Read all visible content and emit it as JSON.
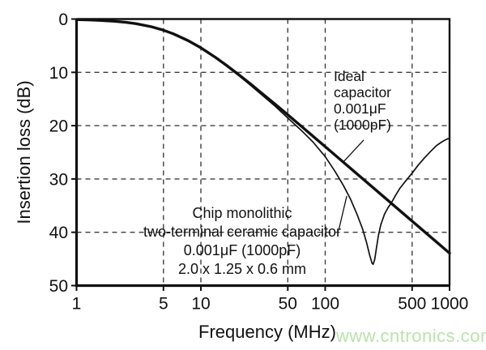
{
  "chart_data": {
    "type": "line",
    "title": "",
    "xlabel": "Frequency (MHz)",
    "ylabel": "Insertion loss (dB)",
    "x_scale": "log",
    "xlim": [
      1,
      1000
    ],
    "ylim": [
      0,
      50
    ],
    "y_axis_inverted": true,
    "grid": "dashed",
    "legend_position": "none",
    "x_ticks": [
      {
        "value": 1,
        "label": "1"
      },
      {
        "value": 5,
        "label": "5"
      },
      {
        "value": 10,
        "label": "10"
      },
      {
        "value": 50,
        "label": "50"
      },
      {
        "value": 100,
        "label": "100"
      },
      {
        "value": 500,
        "label": "500"
      },
      {
        "value": 1000,
        "label": "1000"
      }
    ],
    "y_ticks": [
      {
        "value": 0,
        "label": "0"
      },
      {
        "value": 10,
        "label": "10"
      },
      {
        "value": 20,
        "label": "20"
      },
      {
        "value": 30,
        "label": "30"
      },
      {
        "value": 40,
        "label": "40"
      },
      {
        "value": 50,
        "label": "50"
      }
    ],
    "x_gridlines": [
      5,
      10,
      50,
      100,
      500
    ],
    "y_gridlines": [
      10,
      20,
      30,
      40
    ],
    "series": [
      {
        "name": "Ideal capacitor 0.001μF (1000pF)",
        "stroke_width": 3.4,
        "points": [
          [
            1,
            0.11
          ],
          [
            1.3,
            0.18
          ],
          [
            1.6,
            0.27
          ],
          [
            2,
            0.41
          ],
          [
            2.5,
            0.62
          ],
          [
            3,
            0.87
          ],
          [
            4,
            1.45
          ],
          [
            5,
            2.09
          ],
          [
            6,
            2.76
          ],
          [
            8,
            4.12
          ],
          [
            10,
            5.4
          ],
          [
            13,
            7.14
          ],
          [
            16,
            8.64
          ],
          [
            20,
            10.36
          ],
          [
            25,
            12.15
          ],
          [
            30,
            13.66
          ],
          [
            40,
            16.07
          ],
          [
            50,
            17.97
          ],
          [
            65,
            20.22
          ],
          [
            80,
            22.01
          ],
          [
            100,
            23.94
          ],
          [
            130,
            26.21
          ],
          [
            160,
            28.01
          ],
          [
            200,
            29.95
          ],
          [
            250,
            31.88
          ],
          [
            300,
            33.47
          ],
          [
            400,
            35.97
          ],
          [
            500,
            37.9
          ],
          [
            650,
            40.18
          ],
          [
            800,
            41.98
          ],
          [
            1000,
            43.92
          ]
        ]
      },
      {
        "name": "Chip monolithic two-terminal ceramic capacitor 0.001μF (1000pF) 2.0 x 1.25 x 0.6 mm",
        "stroke_width": 1.7,
        "points": [
          [
            1,
            0.11
          ],
          [
            1.3,
            0.18
          ],
          [
            1.6,
            0.27
          ],
          [
            2,
            0.41
          ],
          [
            2.5,
            0.63
          ],
          [
            3,
            0.88
          ],
          [
            4,
            1.46
          ],
          [
            5,
            2.1
          ],
          [
            6,
            2.78
          ],
          [
            8,
            4.15
          ],
          [
            10,
            5.45
          ],
          [
            13,
            7.25
          ],
          [
            16,
            8.8
          ],
          [
            20,
            10.55
          ],
          [
            25,
            12.4
          ],
          [
            30,
            13.95
          ],
          [
            40,
            16.45
          ],
          [
            50,
            18.55
          ],
          [
            65,
            21.0
          ],
          [
            80,
            23.1
          ],
          [
            100,
            25.8
          ],
          [
            120,
            28.6
          ],
          [
            140,
            31.2
          ],
          [
            160,
            33.8
          ],
          [
            180,
            36.6
          ],
          [
            200,
            39.4
          ],
          [
            215,
            41.9
          ],
          [
            228,
            44.3
          ],
          [
            238,
            45.8
          ],
          [
            243,
            46.0
          ],
          [
            250,
            45.1
          ],
          [
            258,
            43.0
          ],
          [
            268,
            40.6
          ],
          [
            280,
            38.6
          ],
          [
            300,
            36.6
          ],
          [
            320,
            35.4
          ],
          [
            340,
            34.5
          ],
          [
            370,
            33.0
          ],
          [
            400,
            31.7
          ],
          [
            450,
            30.2
          ],
          [
            500,
            28.9
          ],
          [
            560,
            27.4
          ],
          [
            620,
            26.2
          ],
          [
            700,
            24.9
          ],
          [
            780,
            23.8
          ],
          [
            860,
            23.1
          ],
          [
            920,
            22.7
          ],
          [
            970,
            22.45
          ],
          [
            1000,
            22.45
          ]
        ]
      }
    ],
    "annotations": [
      {
        "id": "ideal",
        "text": "Ideal\ncapacitor\n0.001μF\n(1000pF)",
        "pointer": {
          "from": [
            204,
            22.7
          ],
          "to": [
            140,
            26.8
          ]
        }
      },
      {
        "id": "chip",
        "text": "Chip monolithic\ntwo-terminal ceramic capacitor\n0.001μF (1000pF)\n2.0 x 1.25 x 0.6 mm",
        "pointer": {
          "from": [
            129,
            39.4
          ],
          "to": [
            149,
            33.2
          ]
        }
      }
    ],
    "resonance_dip": {
      "frequency_mhz": 243,
      "insertion_loss_db": 46
    },
    "colors": {
      "ink": "#111111",
      "grid": "#3d3d3d",
      "watermark": "#b9e4a8"
    }
  },
  "watermark": {
    "text": "www.cntronics.com"
  }
}
